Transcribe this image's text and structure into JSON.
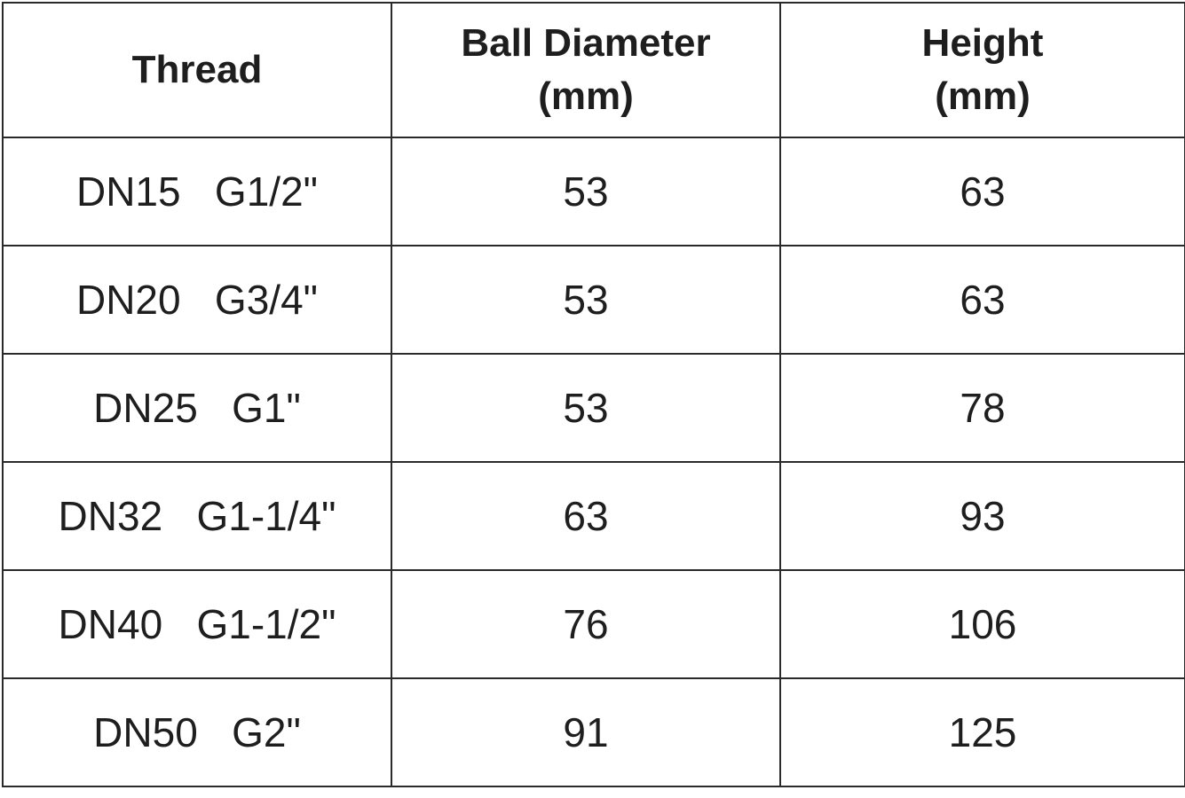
{
  "table": {
    "header": [
      [
        "Thread"
      ],
      [
        "Ball Diameter",
        "(mm)"
      ],
      [
        "Height",
        "(mm)"
      ]
    ],
    "rows": [
      [
        "DN15   G1/2\"",
        53,
        63
      ],
      [
        "DN20   G3/4\"",
        53,
        63
      ],
      [
        "DN25   G1\"",
        53,
        78
      ],
      [
        "DN32   G1-1/4\"",
        63,
        93
      ],
      [
        "DN40   G1-1/2\"",
        76,
        106
      ],
      [
        "DN50   G2\"",
        91,
        125
      ]
    ]
  }
}
